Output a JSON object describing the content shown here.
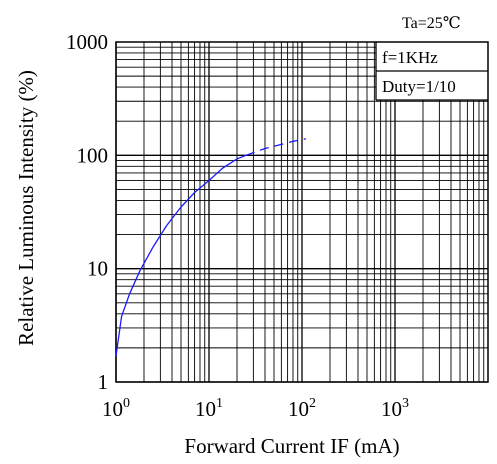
{
  "chart_data": {
    "type": "line",
    "title": "",
    "xlabel": "Forward Current IF (mA)",
    "ylabel": "Relative Luminous Intensity (%)",
    "x_scale": "log",
    "y_scale": "log",
    "xlim": [
      1,
      10000
    ],
    "ylim": [
      1,
      1000
    ],
    "grid": true,
    "x_ticks": [
      {
        "value": 1,
        "base": "10",
        "exp": "0"
      },
      {
        "value": 10,
        "base": "10",
        "exp": "1"
      },
      {
        "value": 100,
        "base": "10",
        "exp": "2"
      },
      {
        "value": 1000,
        "base": "10",
        "exp": "3"
      }
    ],
    "y_ticks": [
      {
        "value": 1,
        "label": "1"
      },
      {
        "value": 10,
        "label": "10"
      },
      {
        "value": 100,
        "label": "100"
      },
      {
        "value": 1000,
        "label": "1000"
      }
    ],
    "annotations": {
      "ambient": "Ta=25℃",
      "frequency": "f=1KHz",
      "duty": "Duty=1/10"
    },
    "series_color": "#1a1aff",
    "series": [
      {
        "style": "solid",
        "x": [
          1,
          1.15,
          1.4,
          1.8,
          2.5,
          3.5,
          5,
          7,
          10,
          14,
          20,
          25
        ],
        "y": [
          1.7,
          3.8,
          6.0,
          9.5,
          15.5,
          24,
          35,
          47,
          60,
          77,
          93,
          100
        ]
      },
      {
        "style": "dashed",
        "x": [
          25,
          40,
          60,
          80,
          110
        ],
        "y": [
          100,
          115,
          125,
          133,
          140
        ]
      }
    ]
  }
}
